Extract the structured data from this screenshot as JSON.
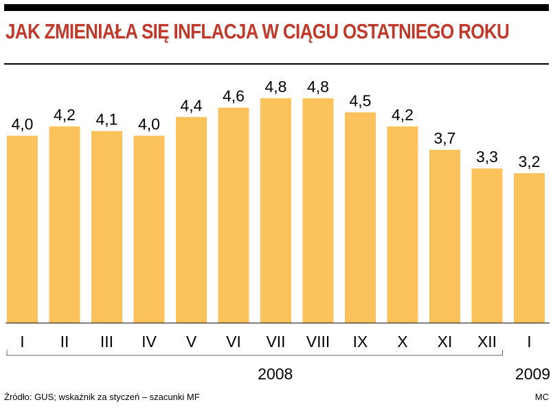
{
  "title": "JAK ZMIENIAŁA SIĘ INFLACJA W CIĄGU OSTATNIEGO ROKU",
  "footer": {
    "source": "Źródło: GUS; wskaźnik za styczeń – szacunki MF",
    "credit": "MC"
  },
  "colors": {
    "bar": "#fcc25b",
    "title": "#c0392b",
    "text": "#000000",
    "rule": "#000000"
  },
  "chart_data": {
    "type": "bar",
    "title": "JAK ZMIENIAŁA SIĘ INFLACJA W CIĄGU OSTATNIEGO ROKU",
    "categories": [
      "I",
      "II",
      "III",
      "IV",
      "V",
      "VI",
      "VII",
      "VIII",
      "IX",
      "X",
      "XI",
      "XII",
      "I"
    ],
    "values": [
      4.0,
      4.2,
      4.1,
      4.0,
      4.4,
      4.6,
      4.8,
      4.8,
      4.5,
      4.2,
      3.7,
      3.3,
      3.2
    ],
    "value_labels": [
      "4,0",
      "4,2",
      "4,1",
      "4,0",
      "4,4",
      "4,6",
      "4,8",
      "4,8",
      "4,5",
      "4,2",
      "3,7",
      "3,3",
      "3,2"
    ],
    "year_groups": [
      {
        "label": "2008",
        "from": 0,
        "to": 11
      },
      {
        "label": "2009",
        "from": 12,
        "to": 12
      }
    ],
    "xlabel": "",
    "ylabel": "",
    "ylim": [
      0,
      4.8
    ],
    "grid": false,
    "legend": "none"
  }
}
